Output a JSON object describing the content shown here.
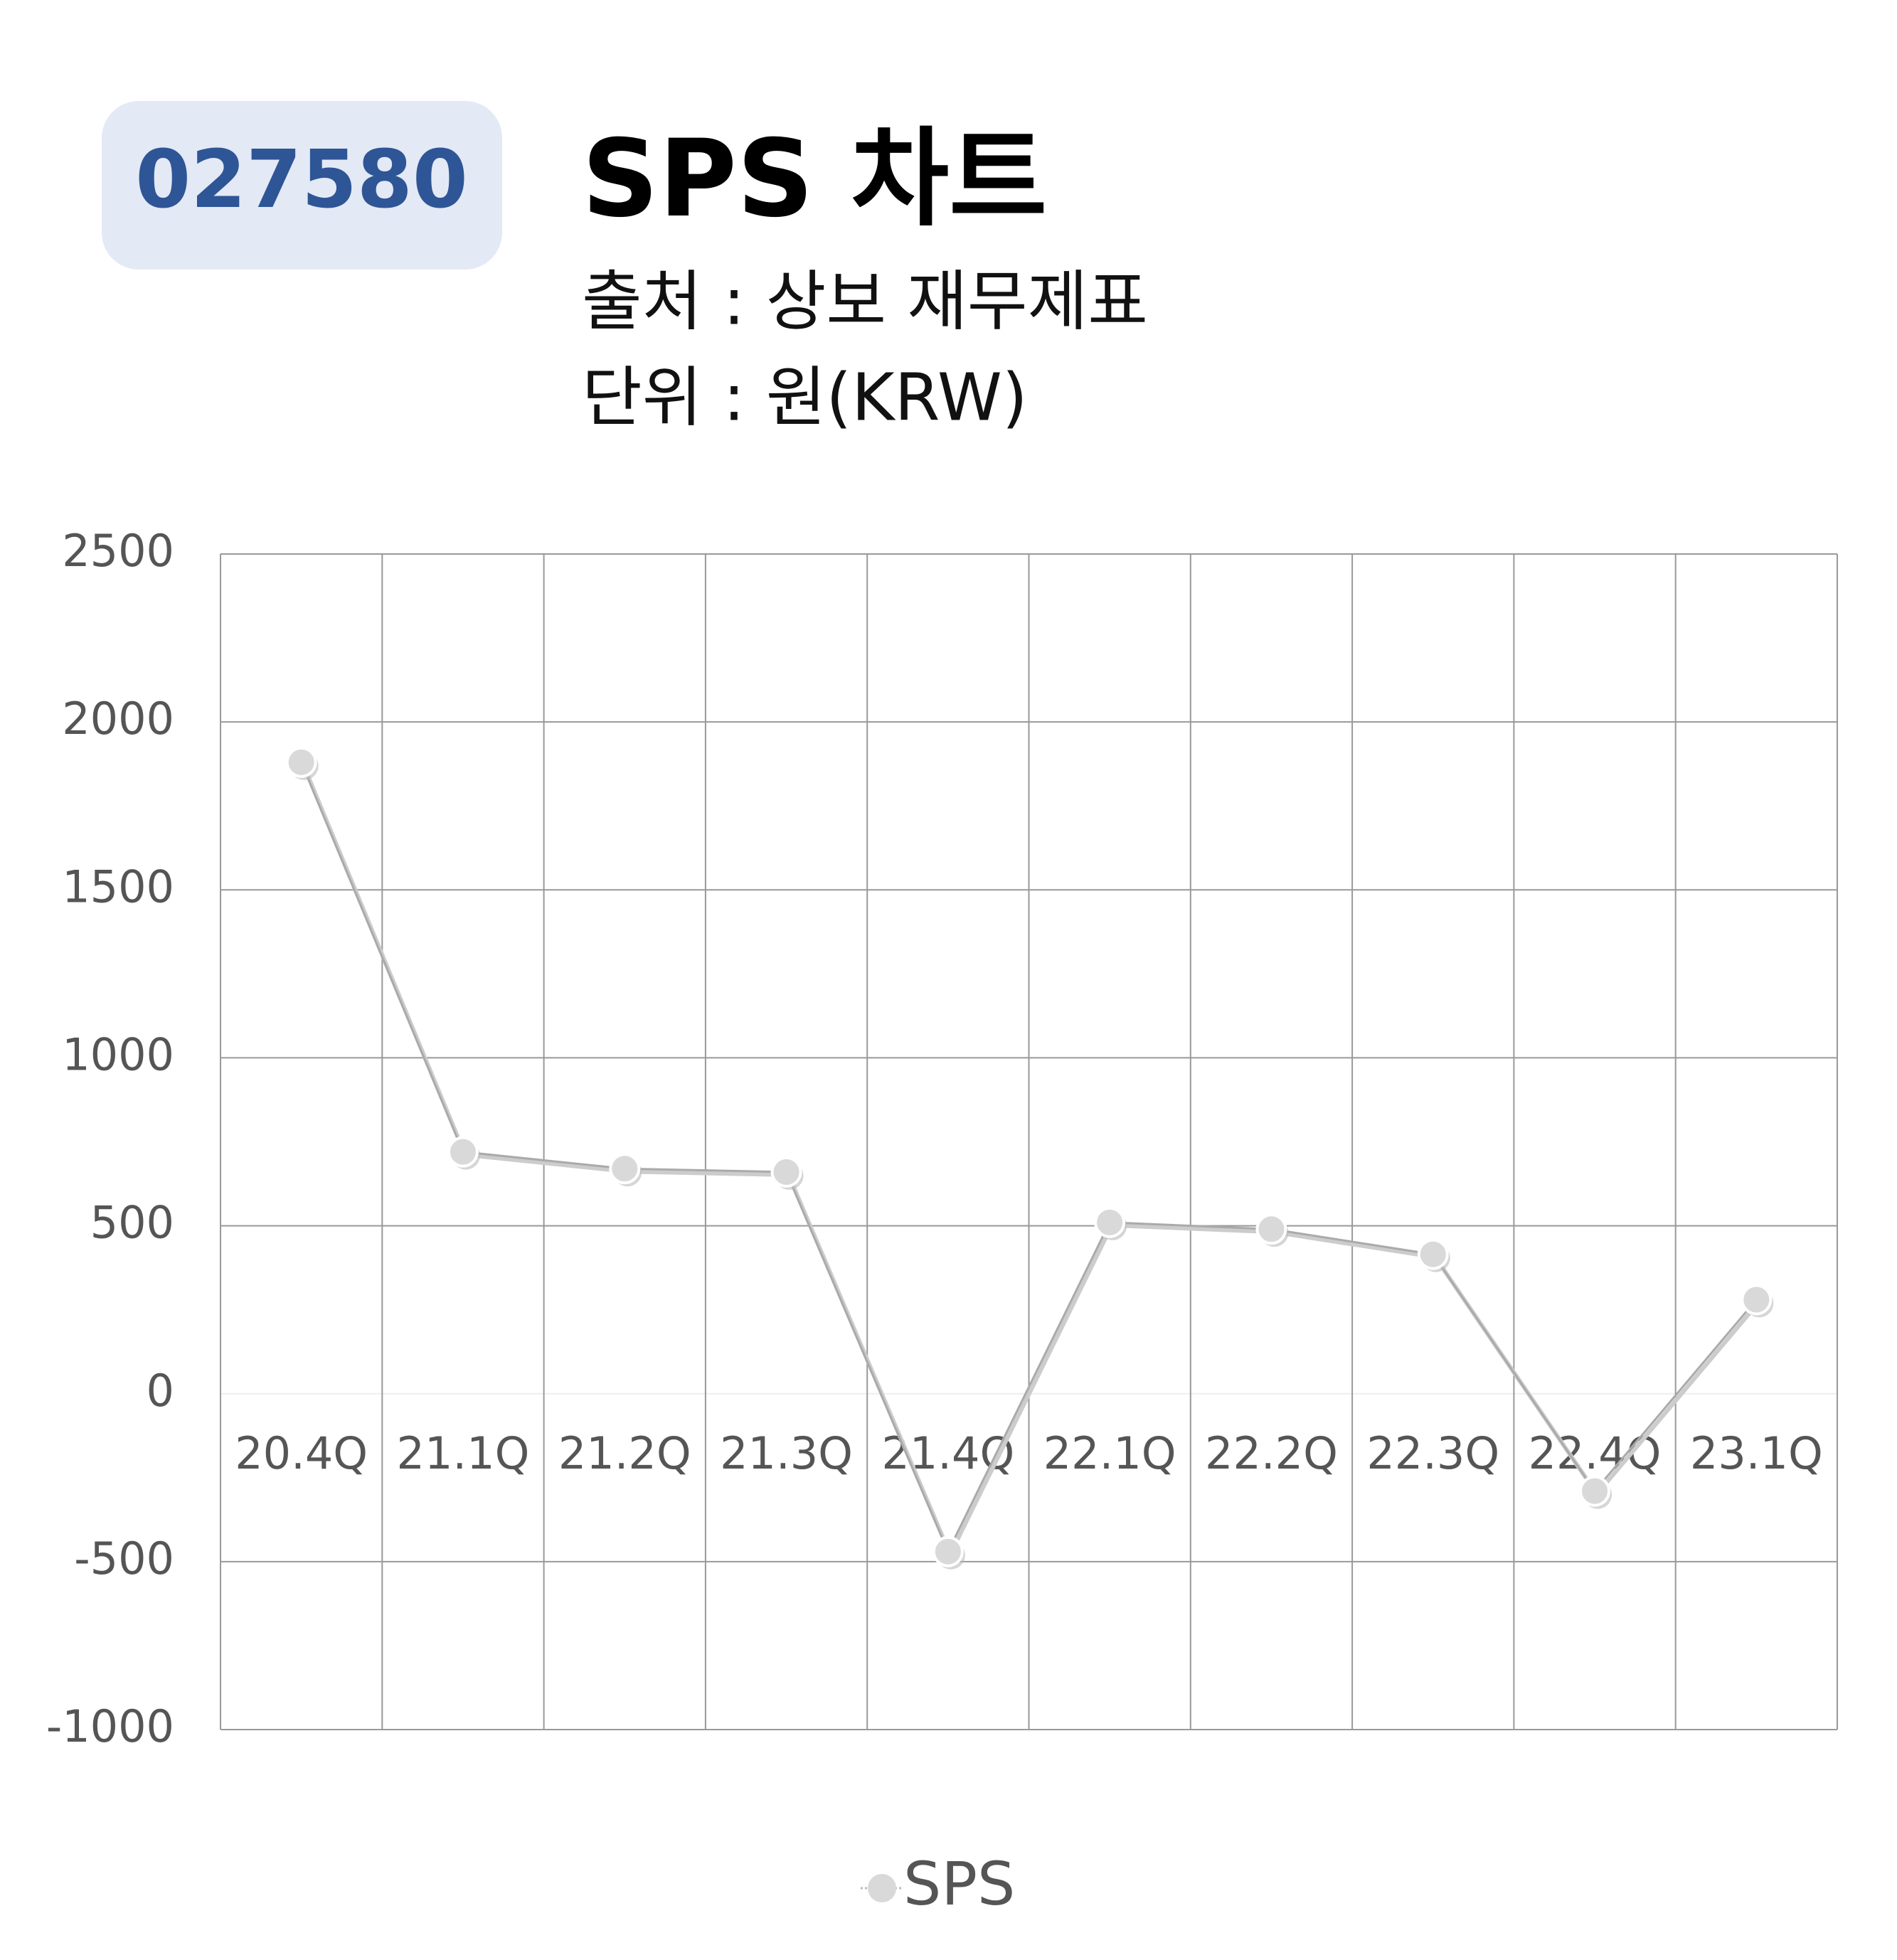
{
  "header": {
    "code": "027580",
    "title": "SPS 차트",
    "source": "출처 : 상보 재무제표",
    "unit": "단위 : 원(KRW)"
  },
  "chart_data": {
    "type": "line",
    "categories": [
      "20.4Q",
      "21.1Q",
      "21.2Q",
      "21.3Q",
      "21.4Q",
      "22.1Q",
      "22.2Q",
      "22.3Q",
      "22.4Q",
      "23.1Q"
    ],
    "series": [
      {
        "name": "SPS",
        "color": "#d9d9d9",
        "values": [
          1880,
          720,
          670,
          660,
          -470,
          510,
          490,
          415,
          -290,
          280
        ]
      }
    ],
    "ylim": [
      -1000,
      2500
    ],
    "yticks": [
      -1000,
      -500,
      0,
      500,
      1000,
      1500,
      2000,
      2500
    ],
    "grid": true,
    "legend": "bottom"
  }
}
